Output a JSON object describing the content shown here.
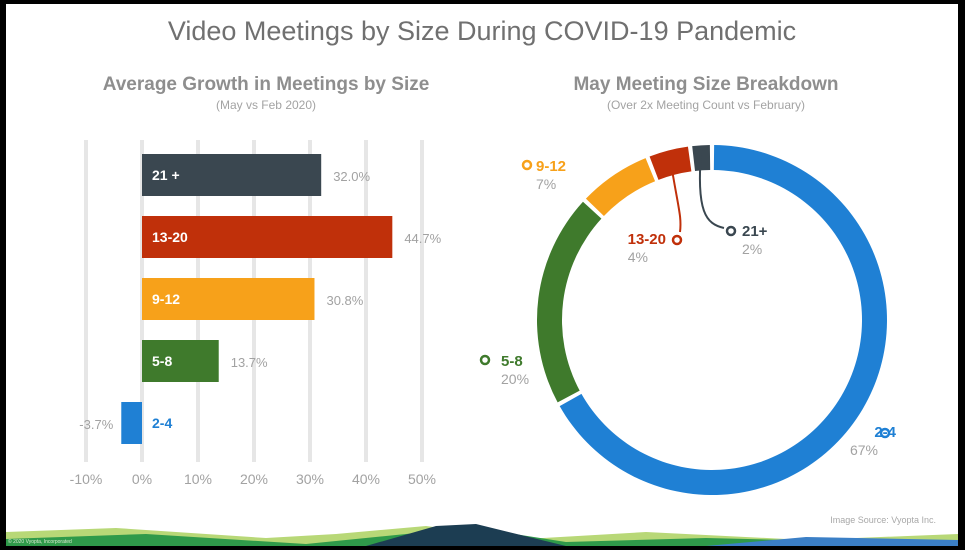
{
  "title": "Video Meetings by Size During COVID-19 Pandemic",
  "source": "Image Source: Vyopta Inc.",
  "footer_note": "© 2020 Vyopta, Incorporated",
  "colors": {
    "21+": "#3a4750",
    "13-20": "#c0300a",
    "9-12": "#f7a11a",
    "5-8": "#3f7a2c",
    "2-4": "#1f80d4",
    "grid": "#e6e6e6",
    "value_text": "#a2a2a2"
  },
  "chart_data": [
    {
      "type": "bar",
      "orientation": "horizontal",
      "title": "Average Growth in Meetings by Size",
      "subtitle": "(May vs Feb 2020)",
      "categories": [
        "21 +",
        "13-20",
        "9-12",
        "5-8",
        "2-4"
      ],
      "values": [
        32.0,
        44.7,
        30.8,
        13.7,
        -3.7
      ],
      "value_labels": [
        "32.0%",
        "44.7%",
        "30.8%",
        "13.7%",
        "-3.7%"
      ],
      "xlim": [
        -10,
        50
      ],
      "x_ticks": [
        -10,
        0,
        10,
        20,
        30,
        40,
        50
      ],
      "x_tick_labels": [
        "-10%",
        "0%",
        "10%",
        "20%",
        "30%",
        "40%",
        "50%"
      ],
      "grid": true
    },
    {
      "type": "pie",
      "style": "donut",
      "title": "May Meeting Size Breakdown",
      "subtitle": "(Over 2x Meeting Count vs February)",
      "categories": [
        "2-4",
        "5-8",
        "9-12",
        "13-20",
        "21+"
      ],
      "values": [
        67,
        20,
        7,
        4,
        2
      ],
      "value_labels": [
        "67%",
        "20%",
        "7%",
        "4%",
        "2%"
      ]
    }
  ]
}
